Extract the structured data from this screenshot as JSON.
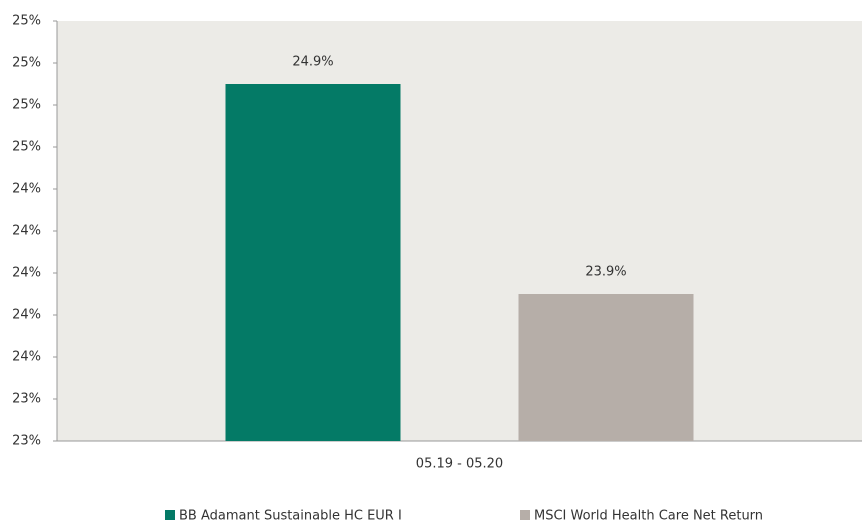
{
  "chart_data": {
    "type": "bar",
    "categories": [
      "05.19 - 05.20"
    ],
    "series": [
      {
        "name": "BB Adamant Sustainable HC EUR I",
        "color": "#047a66",
        "values": [
          24.9
        ],
        "value_labels": [
          "24.9%"
        ]
      },
      {
        "name": "MSCI World Health Care Net Return",
        "color": "#b6aea8",
        "values": [
          23.9
        ],
        "value_labels": [
          "23.9%"
        ]
      }
    ],
    "ylim": [
      23.2,
      25.2
    ],
    "yticks": [
      {
        "value": 23.2,
        "label": "23%"
      },
      {
        "value": 23.4,
        "label": "23%"
      },
      {
        "value": 23.6,
        "label": "24%"
      },
      {
        "value": 23.8,
        "label": "24%"
      },
      {
        "value": 24.0,
        "label": "24%"
      },
      {
        "value": 24.2,
        "label": "24%"
      },
      {
        "value": 24.4,
        "label": "24%"
      },
      {
        "value": 24.6,
        "label": "25%"
      },
      {
        "value": 24.8,
        "label": "25%"
      },
      {
        "value": 25.0,
        "label": "25%"
      },
      {
        "value": 25.2,
        "label": "25%"
      }
    ],
    "legend": "bottom"
  }
}
